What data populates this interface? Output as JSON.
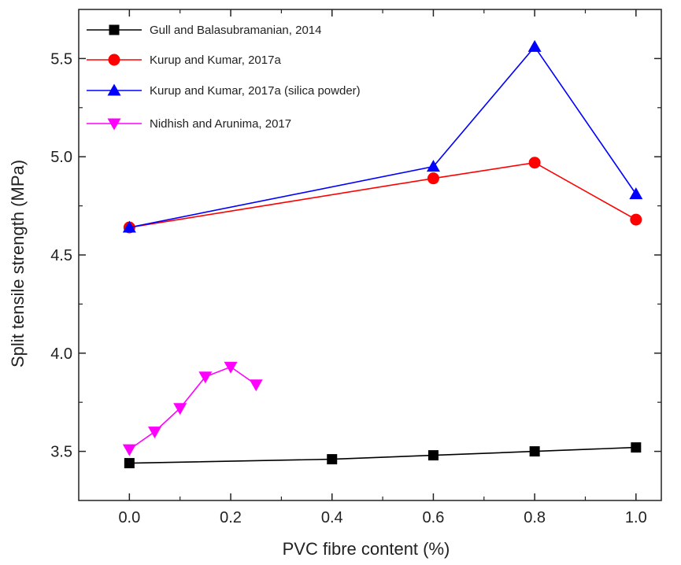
{
  "chart_data": {
    "type": "line",
    "xlabel": "PVC fibre content (%)",
    "ylabel": "Split tensile strength (MPa)",
    "xlim": [
      -0.1,
      1.05
    ],
    "ylim": [
      3.25,
      5.75
    ],
    "x_ticks": [
      0.0,
      0.2,
      0.4,
      0.6,
      0.8,
      1.0
    ],
    "x_tick_labels": [
      "0.0",
      "0.2",
      "0.4",
      "0.6",
      "0.8",
      "1.0"
    ],
    "y_ticks": [
      3.5,
      4.0,
      4.5,
      5.0,
      5.5
    ],
    "y_tick_labels": [
      "3.5",
      "4.0",
      "4.5",
      "5.0",
      "5.5"
    ],
    "grid": false,
    "legend_position": "top-left",
    "series": [
      {
        "name": "Gull and Balasubramanian, 2014",
        "color": "#000000",
        "marker": "square",
        "x": [
          0.0,
          0.4,
          0.6,
          0.8,
          1.0
        ],
        "y": [
          3.44,
          3.46,
          3.48,
          3.5,
          3.52
        ]
      },
      {
        "name": "Kurup and Kumar, 2017a",
        "color": "#ff0000",
        "marker": "circle",
        "x": [
          0.0,
          0.6,
          0.8,
          1.0
        ],
        "y": [
          4.64,
          4.89,
          4.97,
          4.68
        ]
      },
      {
        "name": "Kurup and Kumar, 2017a (silica powder)",
        "color": "#0000ff",
        "marker": "triangle-up",
        "x": [
          0.0,
          0.6,
          0.8,
          1.0
        ],
        "y": [
          4.64,
          4.95,
          5.56,
          4.81
        ]
      },
      {
        "name": "Nidhish and Arunima, 2017",
        "color": "#ff00ff",
        "marker": "triangle-down",
        "x": [
          0.0,
          0.05,
          0.1,
          0.15,
          0.2,
          0.25
        ],
        "y": [
          3.51,
          3.6,
          3.72,
          3.88,
          3.93,
          3.84
        ]
      }
    ]
  }
}
